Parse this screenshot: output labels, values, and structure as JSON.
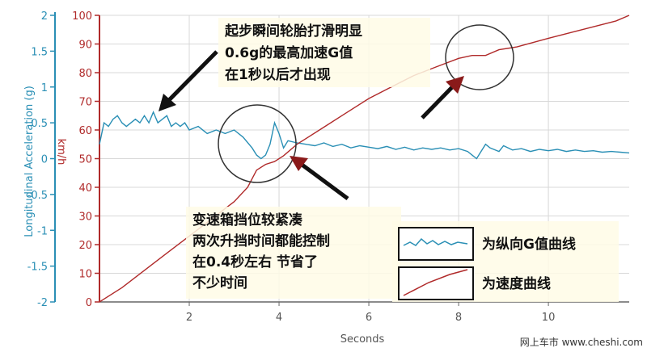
{
  "chart_data": {
    "type": "line",
    "xlabel": "Seconds",
    "xlim": [
      0,
      11.8
    ],
    "x_ticks": [
      "2",
      "4",
      "6",
      "8",
      "10"
    ],
    "y_left": {
      "label": "Longitudinal Acceleration (g)",
      "ylim": [
        -2,
        2
      ],
      "ticks": [
        "2",
        "1.5",
        "1",
        "0.5",
        "0",
        "-0.5",
        "-1",
        "-1.5",
        "-2"
      ],
      "color": "#2a8fb5"
    },
    "y_right": {
      "label": "km/h",
      "ylim": [
        0,
        100
      ],
      "ticks": [
        "100",
        "90",
        "80",
        "70",
        "60",
        "50",
        "40",
        "30",
        "20",
        "10",
        "0"
      ],
      "color": "#b02a2a"
    },
    "grid": true,
    "series": [
      {
        "name": "为纵向G值曲线",
        "axis": "left",
        "color": "#2a8fb5",
        "points": [
          [
            0,
            0.2
          ],
          [
            0.1,
            0.5
          ],
          [
            0.2,
            0.45
          ],
          [
            0.3,
            0.55
          ],
          [
            0.4,
            0.6
          ],
          [
            0.5,
            0.5
          ],
          [
            0.6,
            0.45
          ],
          [
            0.7,
            0.5
          ],
          [
            0.8,
            0.55
          ],
          [
            0.9,
            0.5
          ],
          [
            1.0,
            0.6
          ],
          [
            1.1,
            0.5
          ],
          [
            1.2,
            0.65
          ],
          [
            1.3,
            0.5
          ],
          [
            1.4,
            0.55
          ],
          [
            1.5,
            0.6
          ],
          [
            1.6,
            0.45
          ],
          [
            1.7,
            0.5
          ],
          [
            1.8,
            0.45
          ],
          [
            1.9,
            0.5
          ],
          [
            2.0,
            0.4
          ],
          [
            2.2,
            0.45
          ],
          [
            2.4,
            0.35
          ],
          [
            2.6,
            0.4
          ],
          [
            2.8,
            0.35
          ],
          [
            3.0,
            0.4
          ],
          [
            3.2,
            0.3
          ],
          [
            3.4,
            0.15
          ],
          [
            3.5,
            0.05
          ],
          [
            3.6,
            0.0
          ],
          [
            3.7,
            0.05
          ],
          [
            3.8,
            0.2
          ],
          [
            3.9,
            0.5
          ],
          [
            4.0,
            0.35
          ],
          [
            4.1,
            0.15
          ],
          [
            4.2,
            0.25
          ],
          [
            4.4,
            0.22
          ],
          [
            4.6,
            0.2
          ],
          [
            4.8,
            0.18
          ],
          [
            5.0,
            0.22
          ],
          [
            5.2,
            0.17
          ],
          [
            5.4,
            0.2
          ],
          [
            5.6,
            0.15
          ],
          [
            5.8,
            0.18
          ],
          [
            6.0,
            0.16
          ],
          [
            6.2,
            0.14
          ],
          [
            6.4,
            0.17
          ],
          [
            6.6,
            0.13
          ],
          [
            6.8,
            0.16
          ],
          [
            7.0,
            0.12
          ],
          [
            7.2,
            0.15
          ],
          [
            7.4,
            0.13
          ],
          [
            7.6,
            0.15
          ],
          [
            7.8,
            0.12
          ],
          [
            8.0,
            0.14
          ],
          [
            8.2,
            0.1
          ],
          [
            8.3,
            0.05
          ],
          [
            8.4,
            0.0
          ],
          [
            8.5,
            0.1
          ],
          [
            8.6,
            0.2
          ],
          [
            8.7,
            0.15
          ],
          [
            8.9,
            0.1
          ],
          [
            9.0,
            0.18
          ],
          [
            9.2,
            0.12
          ],
          [
            9.4,
            0.14
          ],
          [
            9.6,
            0.1
          ],
          [
            9.8,
            0.13
          ],
          [
            10.0,
            0.11
          ],
          [
            10.2,
            0.13
          ],
          [
            10.4,
            0.1
          ],
          [
            10.6,
            0.12
          ],
          [
            10.8,
            0.1
          ],
          [
            11.0,
            0.11
          ],
          [
            11.2,
            0.09
          ],
          [
            11.4,
            0.1
          ],
          [
            11.6,
            0.09
          ],
          [
            11.8,
            0.08
          ]
        ]
      },
      {
        "name": "为速度曲线",
        "axis": "right",
        "color": "#b02a2a",
        "points": [
          [
            0,
            0
          ],
          [
            0.5,
            5
          ],
          [
            1,
            11
          ],
          [
            1.5,
            17
          ],
          [
            2,
            23
          ],
          [
            2.5,
            29
          ],
          [
            3,
            35
          ],
          [
            3.3,
            40
          ],
          [
            3.5,
            46
          ],
          [
            3.7,
            48
          ],
          [
            3.9,
            49
          ],
          [
            4.1,
            51
          ],
          [
            4.4,
            55
          ],
          [
            5,
            61
          ],
          [
            5.5,
            66
          ],
          [
            6,
            71
          ],
          [
            6.5,
            75
          ],
          [
            7,
            79
          ],
          [
            7.5,
            82
          ],
          [
            8,
            85
          ],
          [
            8.3,
            86
          ],
          [
            8.6,
            86
          ],
          [
            8.9,
            88
          ],
          [
            9.3,
            89
          ],
          [
            10,
            92
          ],
          [
            10.5,
            94
          ],
          [
            11,
            96
          ],
          [
            11.5,
            98
          ],
          [
            11.8,
            100
          ]
        ]
      }
    ],
    "annotations": [
      {
        "lines": [
          "起步瞬间轮胎打滑明显",
          "0.6g的最高加速G值",
          "在1秒以后才出现"
        ]
      },
      {
        "lines": [
          "变速箱挡位较紧凑",
          "两次升挡时间都能控制",
          "在0.4秒左右 节省了",
          "不少时间"
        ]
      }
    ],
    "legend_position": "bottom-right"
  },
  "watermark": "网上车市 www.cheshi.com"
}
